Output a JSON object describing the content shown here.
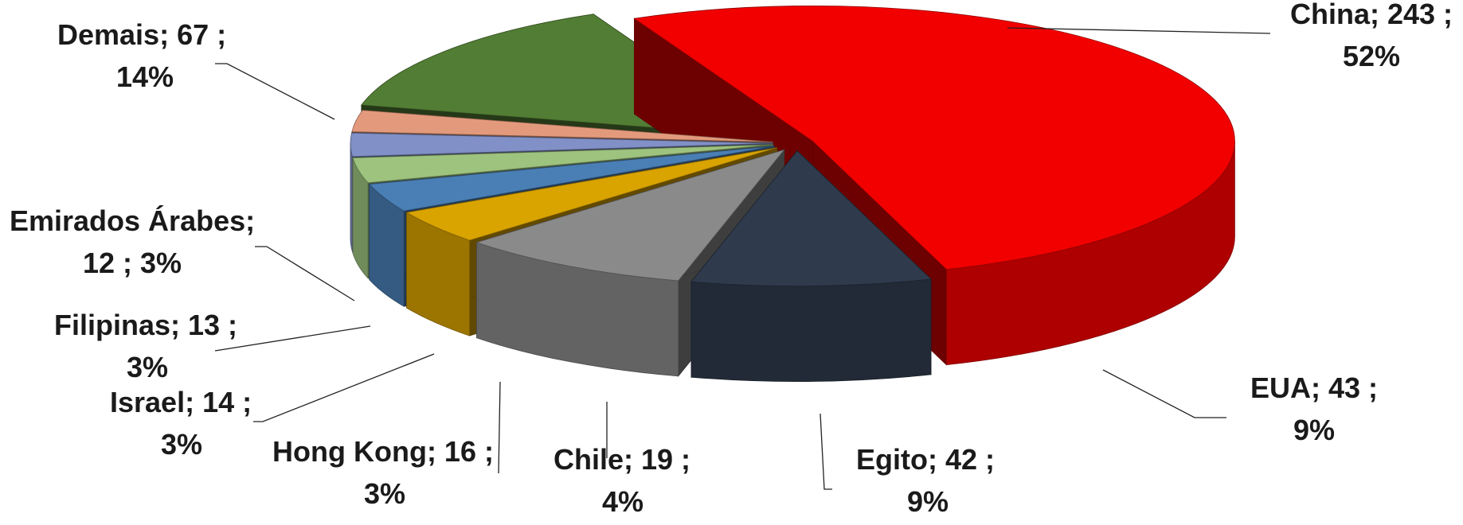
{
  "chart_data": {
    "type": "pie",
    "style": "3d-exploded",
    "legend": "none",
    "slices": [
      {
        "name": "China",
        "value": 243,
        "percent": 52,
        "color": "#f20000",
        "label1": "China; 243 ;",
        "label2": "52%"
      },
      {
        "name": "EUA",
        "value": 43,
        "percent": 9,
        "color": "#2f3b4d",
        "label1": "EUA; 43 ;",
        "label2": "9%"
      },
      {
        "name": "Egito",
        "value": 42,
        "percent": 9,
        "color": "#8a8a8a",
        "label1": "Egito; 42 ;",
        "label2": "9%"
      },
      {
        "name": "Chile",
        "value": 19,
        "percent": 4,
        "color": "#d9a300",
        "label1": "Chile; 19 ;",
        "label2": "4%"
      },
      {
        "name": "Hong Kong",
        "value": 16,
        "percent": 3,
        "color": "#4a7fb5",
        "label1": "Hong Kong; 16 ;",
        "label2": "3%"
      },
      {
        "name": "Israel",
        "value": 14,
        "percent": 3,
        "color": "#9dc37f",
        "label1": "Israel; 14 ;",
        "label2": "3%"
      },
      {
        "name": "Filipinas",
        "value": 13,
        "percent": 3,
        "color": "#8190c6",
        "label1": "Filipinas; 13 ;",
        "label2": "3%"
      },
      {
        "name": "Emirados Árabes",
        "value": 12,
        "percent": 3,
        "color": "#e39a7c",
        "label1": "Emirados Árabes;",
        "label2": "12 ; 3%"
      },
      {
        "name": "Demais",
        "value": 67,
        "percent": 14,
        "color": "#527d34",
        "label1": "Demais; 67 ;",
        "label2": "14%"
      }
    ]
  }
}
